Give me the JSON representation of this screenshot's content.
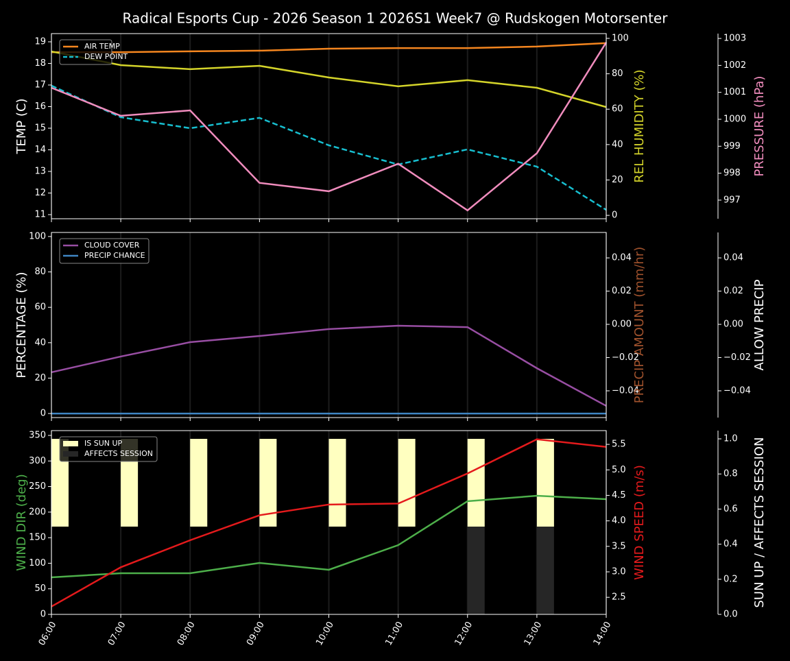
{
  "title": "Radical Esports Cup - 2026 Season 1 2026S1 Week7 @ Rudskogen Motorsenter",
  "chart_data": [
    {
      "type": "line",
      "categories": [
        "06:00",
        "07:00",
        "08:00",
        "09:00",
        "10:00",
        "11:00",
        "12:00",
        "13:00",
        "14:00"
      ],
      "xgrid": true,
      "legend": "upper left",
      "ylabel": "TEMP (C)",
      "ylabel_color": "#ffffff",
      "ylim": [
        10.81,
        19.38
      ],
      "yticks": [
        11,
        12,
        13,
        14,
        15,
        16,
        17,
        18,
        19
      ],
      "y2label": "REL HUMIDITY (%)",
      "y2label_color": "#d4d42a",
      "y2lim": [
        -1.9,
        102.7
      ],
      "y2ticks": [
        0,
        20,
        40,
        60,
        80,
        100
      ],
      "y3label": "PRESSURE (hPa)",
      "y3label_color": "#f08cbd",
      "y3lim": [
        996.31,
        1003.18
      ],
      "y3ticks": [
        997,
        998,
        999,
        1000,
        1001,
        1002,
        1003
      ],
      "series": [
        {
          "name": "AIR TEMP",
          "color": "#f5861f",
          "values": [
            18.52,
            18.52,
            18.56,
            18.59,
            18.68,
            18.71,
            18.71,
            18.78,
            18.94
          ]
        },
        {
          "name": "DEW POINT",
          "color": "#17becf",
          "linestyle": "dashed",
          "values": [
            16.97,
            15.51,
            15.0,
            15.48,
            14.21,
            13.32,
            14.02,
            13.22,
            11.22
          ]
        },
        {
          "color": "#d4d42a",
          "axis": "y2",
          "values": [
            92.6,
            84.9,
            82.6,
            84.5,
            77.9,
            72.9,
            76.4,
            72.1,
            61.2
          ]
        },
        {
          "color": "#f08cbd",
          "axis": "y3",
          "values": [
            1001.17,
            1000.13,
            1000.33,
            997.64,
            997.33,
            998.35,
            996.62,
            998.74,
            1002.85
          ]
        }
      ]
    },
    {
      "type": "line",
      "categories": [
        "06:00",
        "07:00",
        "08:00",
        "09:00",
        "10:00",
        "11:00",
        "12:00",
        "13:00",
        "14:00"
      ],
      "xgrid": true,
      "legend": "upper left",
      "ylabel": "PERCENTAGE (%)",
      "ylabel_color": "#ffffff",
      "ylim": [
        -2.3,
        102.3
      ],
      "yticks": [
        0,
        20,
        40,
        60,
        80,
        100
      ],
      "y2label": "PRECIP AMOUNT (mm/hr)",
      "y2label_color": "#a0522d",
      "y2lim": [
        -0.0561,
        0.0553
      ],
      "y2ticks": [
        {
          "value": -0.04,
          "label": "−0.04"
        },
        {
          "value": -0.02,
          "label": "−0.02"
        },
        {
          "value": 0,
          "label": "0.00"
        },
        0.02,
        0.04
      ],
      "y3label": "ALLOW PRECIP",
      "y3label_color": "#ffffff",
      "y3lim": [
        -0.0561,
        0.0553
      ],
      "y3ticks": [
        {
          "value": -0.04,
          "label": "−0.04"
        },
        {
          "value": -0.02,
          "label": "−0.02"
        },
        {
          "value": 0,
          "label": "0.00"
        },
        0.02,
        0.04
      ],
      "series": [
        {
          "name": "CLOUD COVER",
          "color": "#984ea3",
          "values": [
            23.3,
            32.2,
            40.3,
            43.8,
            47.7,
            49.6,
            48.8,
            25.6,
            4.3
          ]
        },
        {
          "name": "PRECIP CHANCE",
          "color": "#3f86c4",
          "values": [
            0,
            0,
            0,
            0,
            0,
            0,
            0,
            0,
            0
          ]
        }
      ]
    },
    {
      "type": "line",
      "categories": [
        "06:00",
        "07:00",
        "08:00",
        "09:00",
        "10:00",
        "11:00",
        "12:00",
        "13:00",
        "14:00"
      ],
      "xgrid": true,
      "legend": "upper left",
      "xticklabels": true,
      "ylabel": "WIND DIR (deg)",
      "ylabel_color": "#4daf4a",
      "ylim": [
        0,
        359.4
      ],
      "yticks": [
        0,
        50,
        100,
        150,
        200,
        250,
        300,
        350
      ],
      "y2label": "WIND SPEED (m/s)",
      "y2label_color": "#e41a1c",
      "y2lim": [
        2.166,
        5.77
      ],
      "y2ticks": [
        2.5,
        {
          "value": 3,
          "label": "3.0"
        },
        3.5,
        {
          "value": 4,
          "label": "4.0"
        },
        4.5,
        {
          "value": 5,
          "label": "5.0"
        },
        5.5
      ],
      "y3label": "SUN UP / AFFECTS SESSION",
      "y3label_color": "#ffffff",
      "y3lim": [
        0,
        1.047
      ],
      "y3ticks": [
        {
          "value": 0,
          "label": "0.0"
        },
        0.2,
        0.4,
        0.6,
        0.8,
        {
          "value": 1,
          "label": "1.0"
        }
      ],
      "series": [
        {
          "name": "IS SUN UP",
          "type": "bar",
          "axis": "y3",
          "base": 0.5,
          "color": "#ffffc0",
          "values": [
            0.5,
            0.5,
            0.5,
            0.5,
            0.5,
            0.5,
            0.5,
            0.5,
            0
          ]
        },
        {
          "name": "AFFECTS SESSION",
          "type": "bar",
          "axis": "y3",
          "color": "#262626",
          "values": [
            0,
            0,
            0,
            0,
            0,
            0,
            0.5,
            0.5,
            0
          ]
        },
        {
          "color": "#4daf4a",
          "values": [
            72.4,
            80.5,
            80.5,
            100.6,
            87.2,
            135.4,
            221.3,
            232.0,
            225.3
          ]
        },
        {
          "color": "#e41a1c",
          "axis": "y2",
          "values": [
            2.32,
            3.09,
            3.62,
            4.11,
            4.32,
            4.34,
            4.93,
            5.6,
            5.45
          ]
        }
      ]
    }
  ]
}
